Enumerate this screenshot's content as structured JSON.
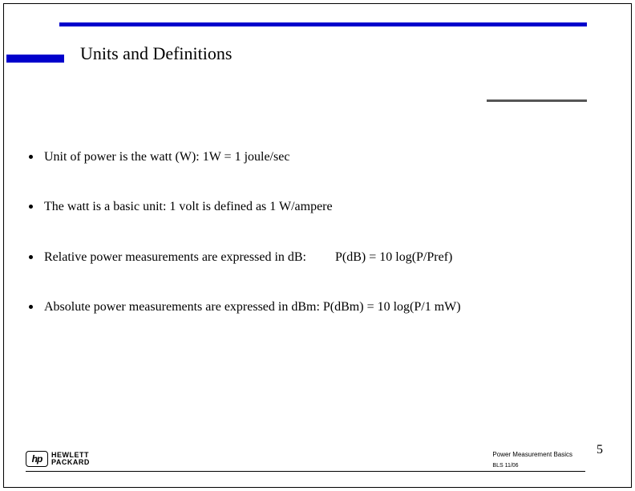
{
  "slide": {
    "title": "Units and Definitions",
    "bullets": [
      {
        "text": "Unit of power is the watt (W):  1W = 1 joule/sec"
      },
      {
        "text": "The watt is a basic unit:  1 volt is defined as 1 W/ampere"
      },
      {
        "text_prefix": "Relative power measurements are expressed in dB:",
        "formula": "P(dB) = 10 log(P/Pref)",
        "has_gap": true
      },
      {
        "text": "Absolute power measurements are expressed in dBm: P(dBm) = 10 log(P/1 mW)"
      }
    ]
  },
  "footer": {
    "logo_company_line1": "HEWLETT",
    "logo_company_line2": "PACKARD",
    "logo_icon_text": "hp",
    "course_title": "Power Measurement Basics",
    "date_code": "BLS  11/06",
    "page_number": "5"
  },
  "colors": {
    "blue_bar": "#0000cc",
    "gray_bar": "#555555",
    "text": "#000000",
    "background": "#ffffff"
  }
}
